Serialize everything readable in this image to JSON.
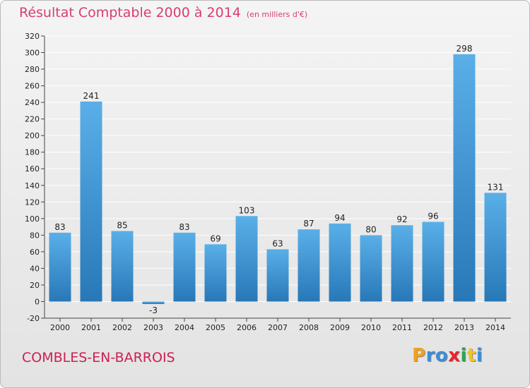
{
  "title": {
    "main": "Résultat Comptable 2000 à 2014",
    "unit": "(en milliers d'€)"
  },
  "location": "COMBLES-EN-BARROIS",
  "brand": {
    "letters": [
      "P",
      "r",
      "o",
      "x",
      "i",
      "t",
      "i"
    ],
    "colors": [
      "#f0a21e",
      "#3a8ed8",
      "#3a8ed8",
      "#e8242c",
      "#2ea44f",
      "#f5c31c",
      "#3a8ed8"
    ]
  },
  "colors": {
    "bar_light": "#5aafe8",
    "bar_dark": "#2878b8",
    "grid": "#ffffff",
    "title": "#d93d71"
  },
  "chart_data": {
    "type": "bar",
    "categories": [
      "2000",
      "2001",
      "2002",
      "2003",
      "2004",
      "2005",
      "2006",
      "2007",
      "2008",
      "2009",
      "2010",
      "2011",
      "2012",
      "2013",
      "2014"
    ],
    "values": [
      83,
      241,
      85,
      -3,
      83,
      69,
      103,
      63,
      87,
      94,
      80,
      92,
      96,
      298,
      131
    ],
    "ylim": [
      -20,
      320
    ],
    "yticks": [
      -20,
      0,
      20,
      40,
      60,
      80,
      100,
      120,
      140,
      160,
      180,
      200,
      220,
      240,
      260,
      280,
      300,
      320
    ],
    "grid": true,
    "data_labels": true
  }
}
